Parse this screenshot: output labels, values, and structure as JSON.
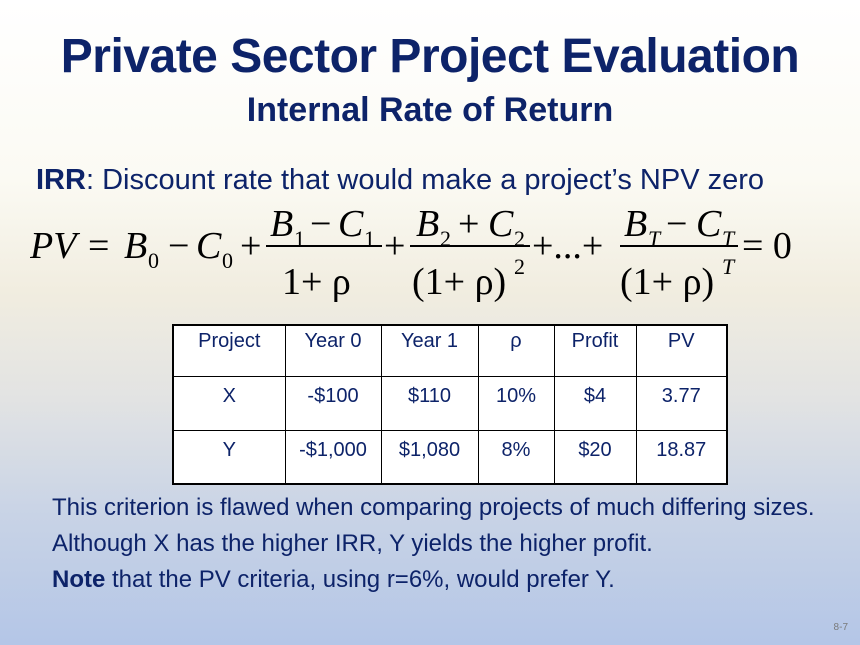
{
  "slide": {
    "title": "Private Sector Project Evaluation",
    "subtitle": "Internal Rate of Return",
    "definition": {
      "term": "IRR",
      "text": ": Discount rate that would make a project’s NPV zero"
    },
    "formula": {
      "pv": "PV",
      "eq": "=",
      "b0": "B",
      "sub0": "0",
      "minus": "−",
      "c0": "C",
      "plus": "+",
      "num1": "B",
      "num1_sub": "1",
      "num1_c": "C",
      "num1_csub": "1",
      "den1": "1+ ρ",
      "num2": "B",
      "num2_sub": "2",
      "num2_c": "C",
      "num2_csub": "2",
      "den2": "(1+ ρ)",
      "den2_exp": "2",
      "ellipsis": "+...+",
      "numT": "B",
      "numT_sub": "T",
      "numT_c": "C",
      "numT_csub": "T",
      "denT": "(1+ ρ)",
      "denT_exp": "T",
      "equals_zero": "= 0"
    },
    "table": {
      "headers": [
        "Project",
        "Year 0",
        "Year 1",
        "ρ",
        "Profit",
        "PV"
      ],
      "rows": [
        [
          "X",
          "-$100",
          "$110",
          "10%",
          "$4",
          "3.77"
        ],
        [
          "Y",
          "-$1,000",
          "$1,080",
          "8%",
          "$20",
          "18.87"
        ]
      ]
    },
    "note": {
      "line1": "This criterion is flawed when comparing projects of much differing sizes. Although X has the higher IRR, Y yields the higher profit.",
      "note_label": "Note",
      "note_text": " that the PV criteria, using r=6%, would prefer Y."
    },
    "slide_number": "8-7",
    "colors": {
      "text": "#0d2369",
      "formula": "#000000"
    }
  }
}
